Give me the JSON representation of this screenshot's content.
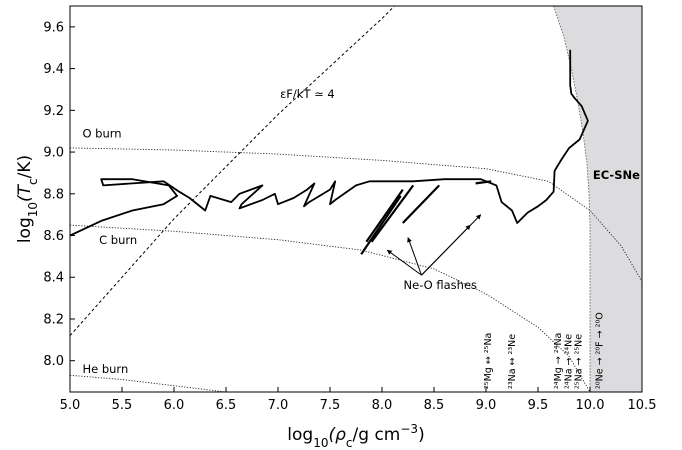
{
  "chart_data": {
    "type": "line",
    "xlim": [
      5.0,
      10.5
    ],
    "ylim": [
      7.85,
      9.7
    ],
    "xticks": [
      "5.0",
      "5.5",
      "6.0",
      "6.5",
      "7.0",
      "7.5",
      "8.0",
      "8.5",
      "9.0",
      "9.5",
      "10.0",
      "10.5"
    ],
    "yticks": [
      "8.0",
      "8.2",
      "8.4",
      "8.6",
      "8.8",
      "9.0",
      "9.2",
      "9.4",
      "9.6"
    ],
    "xtick_values": [
      5.0,
      5.5,
      6.0,
      6.5,
      7.0,
      7.5,
      8.0,
      8.5,
      9.0,
      9.5,
      10.0,
      10.5
    ],
    "ytick_values": [
      8.0,
      8.2,
      8.4,
      8.6,
      8.8,
      9.0,
      9.2,
      9.4,
      9.6
    ],
    "grid": false,
    "track": [
      [
        5.0,
        8.6
      ],
      [
        5.3,
        8.67
      ],
      [
        5.6,
        8.72
      ],
      [
        5.9,
        8.75
      ],
      [
        6.03,
        8.79
      ],
      [
        5.95,
        8.84
      ],
      [
        5.6,
        8.87
      ],
      [
        5.3,
        8.87
      ],
      [
        5.32,
        8.84
      ],
      [
        5.6,
        8.85
      ],
      [
        5.9,
        8.86
      ],
      [
        6.05,
        8.81
      ],
      [
        6.15,
        8.78
      ],
      [
        6.3,
        8.72
      ],
      [
        6.35,
        8.79
      ],
      [
        6.55,
        8.76
      ],
      [
        6.63,
        8.8
      ],
      [
        6.85,
        8.84
      ],
      [
        6.65,
        8.75
      ],
      [
        6.63,
        8.73
      ],
      [
        6.85,
        8.77
      ],
      [
        6.97,
        8.8
      ],
      [
        7.0,
        8.75
      ],
      [
        7.15,
        8.78
      ],
      [
        7.28,
        8.82
      ],
      [
        7.35,
        8.85
      ],
      [
        7.25,
        8.74
      ],
      [
        7.3,
        8.76
      ],
      [
        7.5,
        8.82
      ],
      [
        7.55,
        8.86
      ],
      [
        7.5,
        8.75
      ],
      [
        7.55,
        8.77
      ],
      [
        7.75,
        8.84
      ],
      [
        7.88,
        8.86
      ],
      [
        8.1,
        8.86
      ],
      [
        8.3,
        8.86
      ],
      [
        8.6,
        8.87
      ],
      [
        8.95,
        8.87
      ],
      [
        9.1,
        8.84
      ],
      [
        9.15,
        8.76
      ],
      [
        9.25,
        8.72
      ],
      [
        9.3,
        8.66
      ],
      [
        9.4,
        8.71
      ],
      [
        9.5,
        8.74
      ],
      [
        9.58,
        8.77
      ],
      [
        9.65,
        8.81
      ],
      [
        9.66,
        8.91
      ],
      [
        9.72,
        8.96
      ],
      [
        9.76,
        8.99
      ],
      [
        9.8,
        9.02
      ],
      [
        9.9,
        9.06
      ],
      [
        9.98,
        9.15
      ],
      [
        9.92,
        9.22
      ],
      [
        9.85,
        9.26
      ],
      [
        9.82,
        9.28
      ],
      [
        9.81,
        9.32
      ],
      [
        9.81,
        9.42
      ],
      [
        9.81,
        9.49
      ]
    ],
    "ne_o_segments": [
      [
        [
          7.8,
          8.51
        ],
        [
          8.18,
          8.79
        ]
      ],
      [
        [
          7.85,
          8.57
        ],
        [
          8.2,
          8.82
        ]
      ],
      [
        [
          7.9,
          8.57
        ],
        [
          8.3,
          8.84
        ]
      ],
      [
        [
          8.2,
          8.66
        ],
        [
          8.55,
          8.84
        ]
      ],
      [
        [
          8.9,
          8.85
        ],
        [
          9.05,
          8.86
        ]
      ]
    ],
    "shaded_region": {
      "boundary": [
        [
          9.65,
          9.7
        ],
        [
          9.75,
          9.55
        ],
        [
          9.82,
          9.4
        ],
        [
          9.88,
          9.25
        ],
        [
          9.93,
          9.1
        ],
        [
          9.97,
          8.95
        ],
        [
          9.99,
          8.8
        ],
        [
          10.0,
          8.65
        ],
        [
          10.0,
          8.5
        ],
        [
          10.0,
          8.35
        ],
        [
          10.0,
          8.2
        ],
        [
          10.0,
          8.05
        ],
        [
          10.0,
          7.85
        ]
      ],
      "label": "EC-SNe"
    },
    "dashed_line": {
      "points": [
        [
          5.0,
          8.12
        ],
        [
          6.0,
          8.68
        ],
        [
          7.0,
          9.18
        ],
        [
          8.0,
          9.64
        ],
        [
          8.12,
          9.7
        ]
      ],
      "label": "εF/kT ≃ 4"
    },
    "burn_lines": [
      {
        "label": "O burn",
        "points": [
          [
            5.0,
            9.02
          ],
          [
            6.0,
            9.01
          ],
          [
            7.0,
            8.99
          ],
          [
            8.0,
            8.96
          ],
          [
            9.0,
            8.92
          ],
          [
            9.6,
            8.86
          ],
          [
            10.0,
            8.72
          ],
          [
            10.3,
            8.55
          ],
          [
            10.5,
            8.38
          ]
        ]
      },
      {
        "label": "C burn",
        "points": [
          [
            5.0,
            8.65
          ],
          [
            6.0,
            8.62
          ],
          [
            7.0,
            8.58
          ],
          [
            7.8,
            8.53
          ],
          [
            8.5,
            8.44
          ],
          [
            9.0,
            8.32
          ],
          [
            9.5,
            8.16
          ],
          [
            9.8,
            8.02
          ],
          [
            10.0,
            7.85
          ]
        ]
      },
      {
        "label": "He burn",
        "points": [
          [
            5.0,
            7.93
          ],
          [
            5.5,
            7.91
          ],
          [
            6.0,
            7.88
          ],
          [
            6.5,
            7.85
          ]
        ]
      }
    ],
    "flash_label": "Ne-O flashes",
    "flash_origin": [
      8.38,
      8.41
    ],
    "flash_targets": [
      [
        8.05,
        8.53
      ],
      [
        8.25,
        8.59
      ],
      [
        8.85,
        8.65
      ],
      [
        8.95,
        8.7
      ]
    ],
    "reactions": [
      {
        "x": 9.05,
        "label": "²⁵Mg ↔ ²⁵Na"
      },
      {
        "x": 9.28,
        "label": "²³Na ↔ ²³Ne"
      },
      {
        "x": 9.72,
        "label": "²⁴Mg → ²⁴Na"
      },
      {
        "x": 9.82,
        "label": "²⁴Na → ²⁴Ne"
      },
      {
        "x": 9.92,
        "label": "²⁵Na → ²⁵Ne"
      },
      {
        "x": 10.12,
        "label": "²⁰Ne → ²⁰F → ²⁰O"
      }
    ],
    "xlabel_parts": {
      "pre": "log",
      "sub": "10",
      "mid": "(ρ",
      "sub2": "c",
      "post": "/g cm",
      "sup": "−3",
      "end": ")"
    },
    "ylabel_parts": {
      "pre": "log",
      "sub": "10",
      "mid": "(T",
      "sub2": "c",
      "post": "/K)"
    }
  }
}
